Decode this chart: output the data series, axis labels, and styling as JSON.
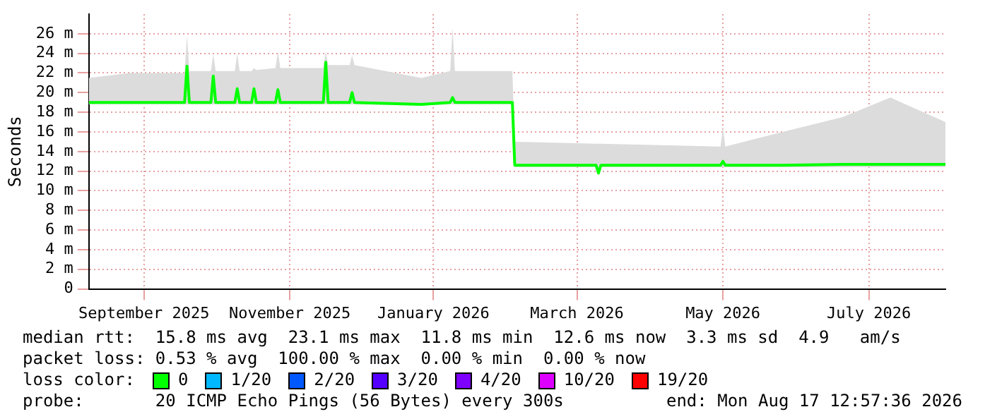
{
  "chart_data": {
    "type": "line",
    "ylabel": "Seconds",
    "xlim": [
      "2025-08-24",
      "2026-08-17"
    ],
    "xticks": [
      {
        "value": "2025-09-16",
        "label": "September 2025"
      },
      {
        "value": "2025-11-16",
        "label": "November 2025"
      },
      {
        "value": "2026-01-15",
        "label": "January 2026"
      },
      {
        "value": "2026-03-16",
        "label": "March 2026"
      },
      {
        "value": "2026-05-16",
        "label": "May 2026"
      },
      {
        "value": "2026-07-16",
        "label": "July 2026"
      }
    ],
    "ylim": [
      0,
      28
    ],
    "yticks": [
      0,
      {
        "value": 2,
        "label": "2 m"
      },
      {
        "value": 4,
        "label": "4 m"
      },
      {
        "value": 6,
        "label": "6 m"
      },
      {
        "value": 8,
        "label": "8 m"
      },
      {
        "value": 10,
        "label": "10 m"
      },
      {
        "value": 12,
        "label": "12 m"
      },
      {
        "value": 14,
        "label": "14 m"
      },
      {
        "value": 16,
        "label": "16 m"
      },
      {
        "value": 18,
        "label": "18 m"
      },
      {
        "value": 20,
        "label": "20 m"
      },
      {
        "value": 22,
        "label": "22 m"
      },
      {
        "value": 24,
        "label": "24 m"
      },
      {
        "value": 26,
        "label": "26 m"
      }
    ],
    "grid": true,
    "legend": "bottom",
    "legend_title": "loss color:",
    "marker": "none",
    "line_style": "solid",
    "series": [
      {
        "name": "0",
        "color": "#00ff00",
        "x": [
          "2025-08-24",
          "2025-09-10",
          "2025-10-03",
          "2025-10-04",
          "2025-10-05",
          "2025-10-14",
          "2025-10-15",
          "2025-10-16",
          "2025-10-24",
          "2025-10-25",
          "2025-10-26",
          "2025-10-31",
          "2025-11-01",
          "2025-11-02",
          "2025-11-10",
          "2025-11-11",
          "2025-11-12",
          "2025-11-30",
          "2025-12-01",
          "2025-12-02",
          "2025-12-11",
          "2025-12-12",
          "2025-12-13",
          "2026-01-10",
          "2026-01-22",
          "2026-01-23",
          "2026-01-24",
          "2026-02-17",
          "2026-02-18",
          "2026-03-24",
          "2026-03-25",
          "2026-03-26",
          "2026-05-15",
          "2026-05-16",
          "2026-05-17",
          "2026-06-10",
          "2026-07-05",
          "2026-07-25",
          "2026-08-17"
        ],
        "values": [
          19.0,
          19.0,
          19.0,
          22.7,
          19.0,
          19.0,
          21.7,
          19.0,
          19.0,
          20.4,
          19.0,
          19.0,
          20.4,
          19.0,
          19.0,
          20.3,
          19.0,
          19.0,
          23.1,
          19.0,
          19.0,
          20.0,
          19.0,
          18.8,
          19.0,
          19.5,
          19.0,
          19.0,
          12.6,
          12.6,
          11.8,
          12.6,
          12.6,
          13.0,
          12.6,
          12.6,
          12.7,
          12.7,
          12.7
        ],
        "lower": [
          18.8,
          18.8,
          18.8,
          18.8,
          18.8,
          18.8,
          18.8,
          18.8,
          18.8,
          18.8,
          18.8,
          18.8,
          18.8,
          18.8,
          18.8,
          18.8,
          18.8,
          18.8,
          18.8,
          18.8,
          18.8,
          18.8,
          18.8,
          18.7,
          18.8,
          18.8,
          18.8,
          18.8,
          12.4,
          12.4,
          11.8,
          12.4,
          12.4,
          12.4,
          12.4,
          12.4,
          12.4,
          12.4,
          12.4
        ],
        "upper": [
          21.5,
          22.0,
          22.0,
          25.8,
          22.2,
          22.2,
          23.9,
          22.2,
          22.2,
          24.0,
          22.2,
          22.2,
          22.5,
          22.3,
          22.5,
          24.2,
          22.5,
          22.5,
          24.2,
          22.8,
          22.8,
          23.8,
          22.8,
          21.5,
          22.2,
          26.6,
          22.2,
          22.2,
          15.0,
          14.8,
          14.8,
          14.8,
          14.5,
          16.5,
          14.5,
          16.0,
          17.5,
          19.5,
          17.0
        ]
      },
      {
        "name": "1/20",
        "color": "#00b8ff"
      },
      {
        "name": "2/20",
        "color": "#0059ff"
      },
      {
        "name": "3/20",
        "color": "#5500ff"
      },
      {
        "name": "4/20",
        "color": "#7e00ff"
      },
      {
        "name": "10/20",
        "color": "#dd00ff"
      },
      {
        "name": "19/20",
        "color": "#ff0000"
      }
    ],
    "annotations": [
      "median rtt:  15.8 ms avg  23.1 ms max  11.8 ms min  12.6 ms now  3.3 ms sd  4.9   am/s",
      "packet loss: 0.53 % avg  100.00 % max  0.00 % min  0.00 % now",
      "probe:       20 ICMP Echo Pings (56 Bytes) every 300s",
      "end: Mon Aug 17 12:57:36 2026"
    ]
  }
}
